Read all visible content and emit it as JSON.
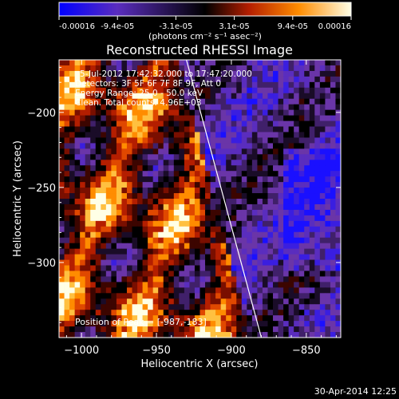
{
  "colorbar": {
    "ticks": [
      "-0.00016",
      "-9.4e-05",
      "-3.1e-05",
      "3.1e-05",
      "9.4e-05",
      "0.00016"
    ],
    "unit_label": "(photons cm⁻² s⁻¹ asec⁻²)",
    "colors": [
      "#0000ff",
      "#5a2dbe",
      "#000000",
      "#b41e00",
      "#ff8c00",
      "#ffffe6"
    ]
  },
  "chart_data": {
    "type": "heatmap",
    "title": "Reconstructed RHESSI Image",
    "xlabel": "Heliocentric X (arcsec)",
    "ylabel": "Heliocentric Y (arcsec)",
    "xlim": [
      -1015,
      -827
    ],
    "ylim": [
      -350,
      -165
    ],
    "xticks": [
      -1000,
      -950,
      -900,
      -850
    ],
    "xtick_labels": [
      "−1000",
      "−950",
      "−900",
      "−850"
    ],
    "yticks": [
      -200,
      -250,
      -300
    ],
    "ytick_labels": [
      "−200",
      "−250",
      "−300"
    ],
    "annotations": [
      "5-Jul-2012 17:42:32.000 to 17:47:20.000",
      "Detectors: 3F 5F 6F 7F 8F 9F, Att 0",
      "Energy Range: 25.0 - 50.0 keV",
      "Clean. Total counts: 4.96E+03"
    ],
    "peak_label": "Position of Peak = [-987,-183]",
    "peak": [
      -987,
      -183
    ],
    "limb_line": [
      [
        -930,
        -165
      ],
      [
        -880,
        -350
      ]
    ],
    "grid": false
  },
  "footer": {
    "timestamp": "30-Apr-2014 12:25"
  }
}
